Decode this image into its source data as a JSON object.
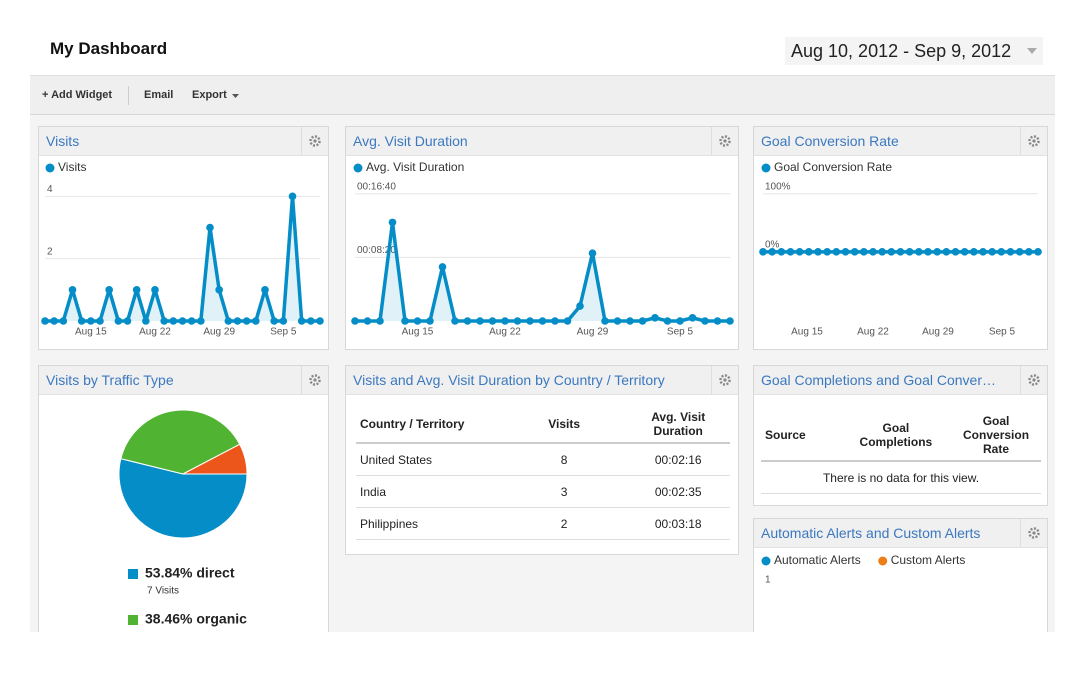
{
  "header": {
    "title": "My Dashboard",
    "date_range": "Aug 10, 2012 - Sep 9, 2012"
  },
  "toolbar": {
    "add_widget": "+ Add Widget",
    "email": "Email",
    "export": "Export"
  },
  "chart_data": [
    {
      "type": "line",
      "title": "Visits",
      "categories": [
        null,
        null,
        null,
        null,
        null,
        "Aug 15",
        null,
        null,
        null,
        null,
        null,
        null,
        "Aug 22",
        null,
        null,
        null,
        null,
        null,
        null,
        "Aug 29",
        null,
        null,
        null,
        null,
        null,
        null,
        "Sep 5",
        null,
        null,
        null,
        null
      ],
      "series": [
        {
          "name": "Visits",
          "color": "#058dc7",
          "values": [
            0,
            0,
            0,
            1,
            0,
            0,
            0,
            1,
            0,
            0,
            1,
            0,
            1,
            0,
            0,
            0,
            0,
            0,
            3,
            1,
            0,
            0,
            0,
            0,
            1,
            0,
            0,
            4,
            0,
            0,
            0
          ]
        }
      ],
      "ylim": [
        0,
        4.3
      ],
      "yticks": [
        4,
        2
      ],
      "grid": true
    },
    {
      "type": "line",
      "title": "Avg. Visit Duration",
      "categories": [
        null,
        null,
        null,
        null,
        null,
        "Aug 15",
        null,
        null,
        null,
        null,
        null,
        null,
        "Aug 22",
        null,
        null,
        null,
        null,
        null,
        null,
        "Aug 29",
        null,
        null,
        null,
        null,
        null,
        null,
        "Sep 5",
        null,
        null,
        null,
        null
      ],
      "series": [
        {
          "name": "Avg. Visit Duration",
          "color": "#058dc7",
          "values": [
            0,
            0,
            0,
            775,
            0,
            0,
            0,
            425,
            0,
            0,
            0,
            0,
            0,
            0,
            0,
            0,
            0,
            0,
            117,
            533,
            0,
            0,
            0,
            0,
            25,
            0,
            0,
            25,
            0,
            0,
            0
          ]
        }
      ],
      "ylim": [
        0,
        1100
      ],
      "yticks": [
        {
          "value": 1000,
          "label": "00:16:40"
        },
        {
          "value": 500,
          "label": "00:08:20"
        }
      ],
      "grid": true
    },
    {
      "type": "line",
      "title": "Goal Conversion Rate",
      "categories": [
        null,
        null,
        null,
        null,
        null,
        "Aug 15",
        null,
        null,
        null,
        null,
        null,
        null,
        "Aug 22",
        null,
        null,
        null,
        null,
        null,
        null,
        "Aug 29",
        null,
        null,
        null,
        null,
        null,
        null,
        "Sep 5",
        null,
        null,
        null,
        null
      ],
      "series": [
        {
          "name": "Goal Conversion Rate",
          "color": "#058dc7",
          "values": [
            0,
            0,
            0,
            0,
            0,
            0,
            0,
            0,
            0,
            0,
            0,
            0,
            0,
            0,
            0,
            0,
            0,
            0,
            0,
            0,
            0,
            0,
            0,
            0,
            0,
            0,
            0,
            0,
            0,
            0,
            0
          ]
        }
      ],
      "ylim": [
        -119,
        115
      ],
      "yticks": [
        {
          "value": 100,
          "label": "100%"
        },
        {
          "value": 0,
          "label": "0%"
        }
      ],
      "grid": true
    },
    {
      "type": "pie",
      "title": "Visits by Traffic Type",
      "values": [
        53.84,
        38.46,
        7.69
      ],
      "value_labels": [
        "53.84% direct",
        "38.46% organic",
        null
      ],
      "value_sublabels": [
        "7 Visits",
        null,
        null
      ],
      "colors": [
        "#058dc7",
        "#50b432",
        "#ed561b"
      ]
    },
    {
      "type": "line",
      "title": "Automatic Alerts and Custom Alerts",
      "categories": [],
      "series": [
        {
          "name": "Automatic Alerts",
          "color": "#058dc7",
          "values": []
        },
        {
          "name": "Custom Alerts",
          "color": "#ed7e17",
          "values": []
        }
      ],
      "ylim": [
        0,
        1
      ],
      "yticks": [
        1
      ],
      "grid": false
    }
  ],
  "country_table": {
    "title": "Visits and Avg. Visit Duration by Country / Territory",
    "headers": [
      "Country / Territory",
      "Visits",
      "Avg. Visit Duration"
    ],
    "rows": [
      [
        "United States",
        "8",
        "00:02:16"
      ],
      [
        "India",
        "3",
        "00:02:35"
      ],
      [
        "Philippines",
        "2",
        "00:03:18"
      ]
    ]
  },
  "goal_table": {
    "title": "Goal Completions and Goal Conver…",
    "headers": [
      "Source",
      "Goal Completions",
      "Goal Conversion Rate"
    ],
    "empty_message": "There is no data for this view."
  }
}
